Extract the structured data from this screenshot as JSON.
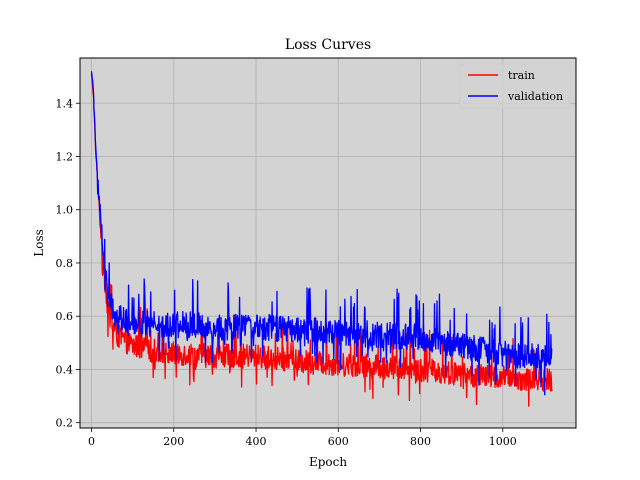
{
  "chart_data": {
    "type": "line",
    "title": "Loss Curves",
    "xlabel": "Epoch",
    "ylabel": "Loss",
    "xlim": [
      -28,
      1178
    ],
    "ylim": [
      0.18,
      1.57
    ],
    "xticks": [
      0,
      200,
      400,
      600,
      800,
      1000
    ],
    "yticks": [
      0.2,
      0.4,
      0.6,
      0.8,
      1.0,
      1.2,
      1.4
    ],
    "ytick_labels": [
      "0.2",
      "0.4",
      "0.6",
      "0.8",
      "1.0",
      "1.2",
      "1.4"
    ],
    "grid": true,
    "background": "#d3d3d3",
    "legend_position": "top-right",
    "n_epochs": 1120,
    "series": [
      {
        "name": "train",
        "color": "#ff0000",
        "anchor_x": [
          0,
          5,
          10,
          20,
          30,
          40,
          60,
          100,
          150,
          200,
          300,
          400,
          500,
          600,
          700,
          800,
          900,
          1000,
          1120
        ],
        "anchor_y": [
          1.51,
          1.42,
          1.22,
          0.98,
          0.78,
          0.62,
          0.53,
          0.49,
          0.47,
          0.46,
          0.45,
          0.45,
          0.43,
          0.42,
          0.41,
          0.4,
          0.38,
          0.37,
          0.36
        ],
        "noise": 0.045,
        "spike": 0.11
      },
      {
        "name": "validation",
        "color": "#0000ff",
        "anchor_x": [
          0,
          5,
          10,
          20,
          30,
          40,
          60,
          100,
          150,
          200,
          300,
          400,
          500,
          600,
          700,
          800,
          900,
          1000,
          1120
        ],
        "anchor_y": [
          1.52,
          1.44,
          1.25,
          1.01,
          0.81,
          0.68,
          0.6,
          0.57,
          0.57,
          0.57,
          0.56,
          0.56,
          0.55,
          0.54,
          0.53,
          0.52,
          0.49,
          0.46,
          0.44
        ],
        "noise": 0.05,
        "spike": 0.13
      }
    ]
  }
}
